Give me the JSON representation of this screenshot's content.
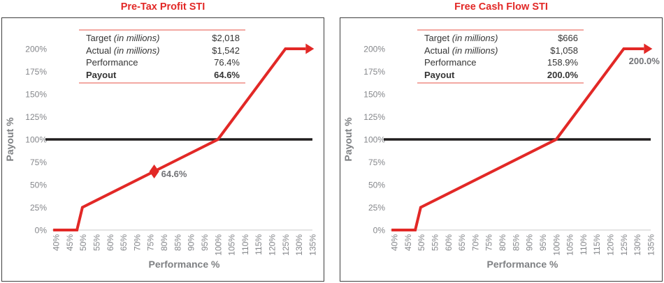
{
  "colors": {
    "accent_red": "#E22826",
    "table_border_pink": "#F3A8A2",
    "axis_gray": "#84868A",
    "axis_title_gray": "#7E8083",
    "table_text": "#343434",
    "reference_line_black": "#211E1F",
    "baseline_gray": "#DBDBDB",
    "panel_border": "#3E3E3E"
  },
  "chart_data": [
    {
      "type": "line",
      "title": "Pre-Tax Profit STI",
      "xlabel": "Performance %",
      "ylabel": "Payout %",
      "xlim": [
        40,
        135
      ],
      "ylim": [
        0,
        200
      ],
      "x_tick_labels": [
        "40%",
        "45%",
        "50%",
        "55%",
        "60%",
        "65%",
        "70%",
        "75%",
        "80%",
        "85%",
        "90%",
        "95%",
        "100%",
        "105%",
        "110%",
        "115%",
        "120%",
        "125%",
        "130%",
        "135%"
      ],
      "y_tick_labels": [
        "0%",
        "25%",
        "50%",
        "75%",
        "100%",
        "125%",
        "150%",
        "175%",
        "200%"
      ],
      "grid": false,
      "legend": "none",
      "reference_line_y": 100,
      "series": [
        {
          "name": "payout-curve",
          "color": "#E22826",
          "points": [
            [
              39,
              0
            ],
            [
              47.8,
              0
            ],
            [
              49.8,
              25
            ],
            [
              100,
              100
            ],
            [
              125,
              200
            ],
            [
              132.5,
              200
            ]
          ],
          "arrow_end": true
        }
      ],
      "marker": {
        "x": 76.4,
        "y": 64.6,
        "label": "64.6%"
      },
      "annotation": null,
      "table": {
        "rows": [
          {
            "label": "Target",
            "note": "(in millions)",
            "value": "$2,018"
          },
          {
            "label": "Actual",
            "note": "(in millions)",
            "value": "$1,542"
          },
          {
            "label": "Performance",
            "note": "",
            "value": "76.4%"
          },
          {
            "label": "Payout",
            "note": "",
            "value": "64.6%"
          }
        ]
      }
    },
    {
      "type": "line",
      "title": "Free Cash Flow STI",
      "xlabel": "Performance %",
      "ylabel": "Payout %",
      "xlim": [
        40,
        135
      ],
      "ylim": [
        0,
        200
      ],
      "x_tick_labels": [
        "40%",
        "45%",
        "50%",
        "55%",
        "60%",
        "65%",
        "70%",
        "75%",
        "80%",
        "85%",
        "90%",
        "95%",
        "100%",
        "105%",
        "110%",
        "115%",
        "120%",
        "125%",
        "130%",
        "135%"
      ],
      "y_tick_labels": [
        "0%",
        "25%",
        "50%",
        "75%",
        "100%",
        "125%",
        "150%",
        "175%",
        "200%"
      ],
      "grid": false,
      "legend": "none",
      "reference_line_y": 100,
      "series": [
        {
          "name": "payout-curve",
          "color": "#E22826",
          "points": [
            [
              39,
              0
            ],
            [
              47.8,
              0
            ],
            [
              49.8,
              25
            ],
            [
              100,
              100
            ],
            [
              125,
              200
            ],
            [
              132.5,
              200
            ]
          ],
          "arrow_end": true
        }
      ],
      "marker": null,
      "annotation": {
        "x": 132.6,
        "y": 186,
        "label": "200.0%"
      },
      "table": {
        "rows": [
          {
            "label": "Target",
            "note": "(in millions)",
            "value": "$666"
          },
          {
            "label": "Actual",
            "note": "(in millions)",
            "value": "$1,058"
          },
          {
            "label": "Performance",
            "note": "",
            "value": "158.9%"
          },
          {
            "label": "Payout",
            "note": "",
            "value": "200.0%"
          }
        ]
      }
    }
  ]
}
